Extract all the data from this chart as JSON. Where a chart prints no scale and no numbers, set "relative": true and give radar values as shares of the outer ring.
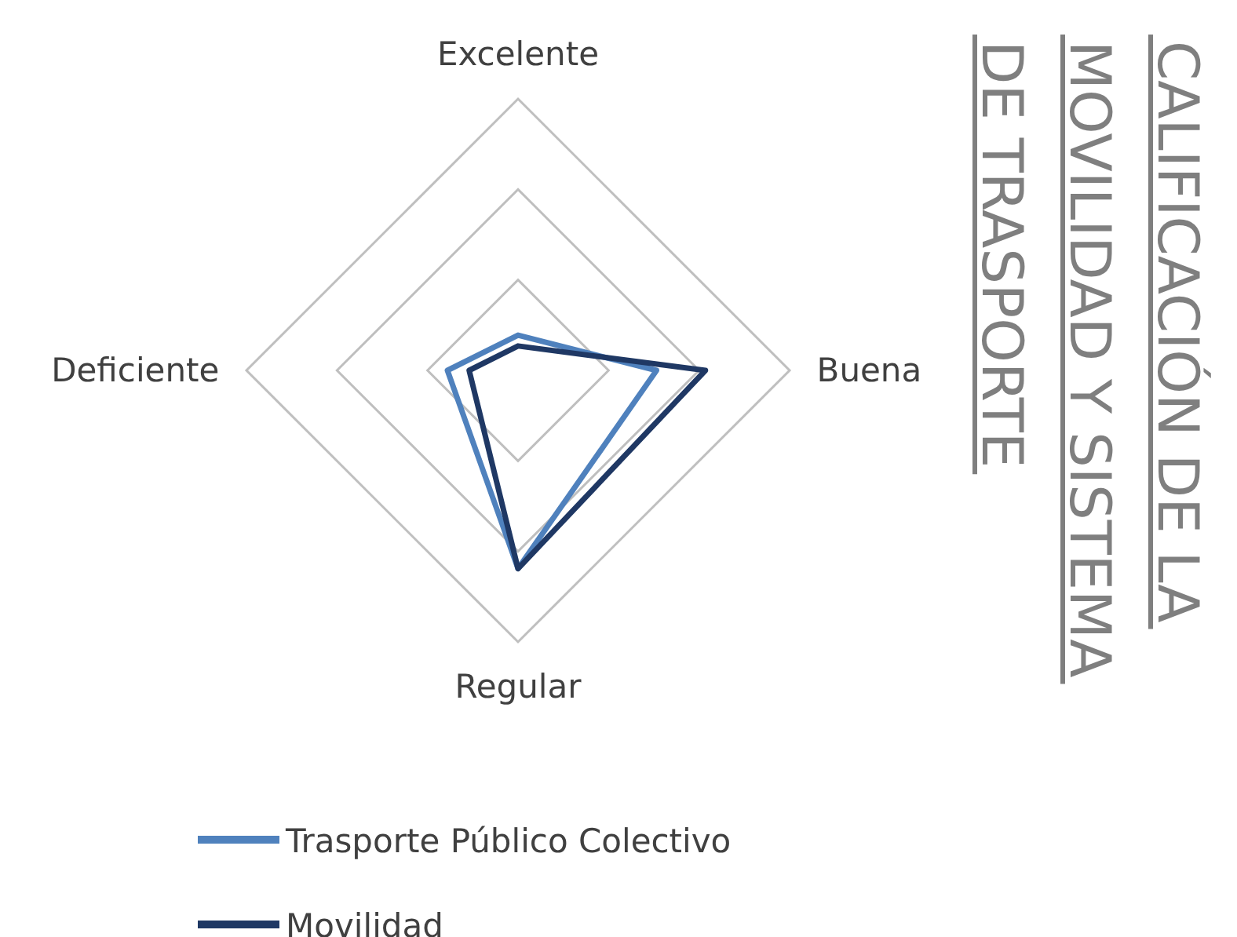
{
  "chart_data": {
    "type": "radar",
    "title": "CALIFICACIÓN DE LA\nMOVILIDAD Y SISTEMA\nDE TRASPORTE",
    "categories": [
      "Excelente",
      "Buena",
      "Regular",
      "Deficiente"
    ],
    "relative": true,
    "grid": true,
    "legend": "bottom",
    "series": [
      {
        "name": "Trasporte Público Colectivo",
        "color": "#4f81bd",
        "values": [
          0.13,
          0.51,
          0.73,
          0.26
        ]
      },
      {
        "name": "Movilidad",
        "color": "#1f3864",
        "values": [
          0.09,
          0.69,
          0.73,
          0.18
        ]
      }
    ]
  }
}
